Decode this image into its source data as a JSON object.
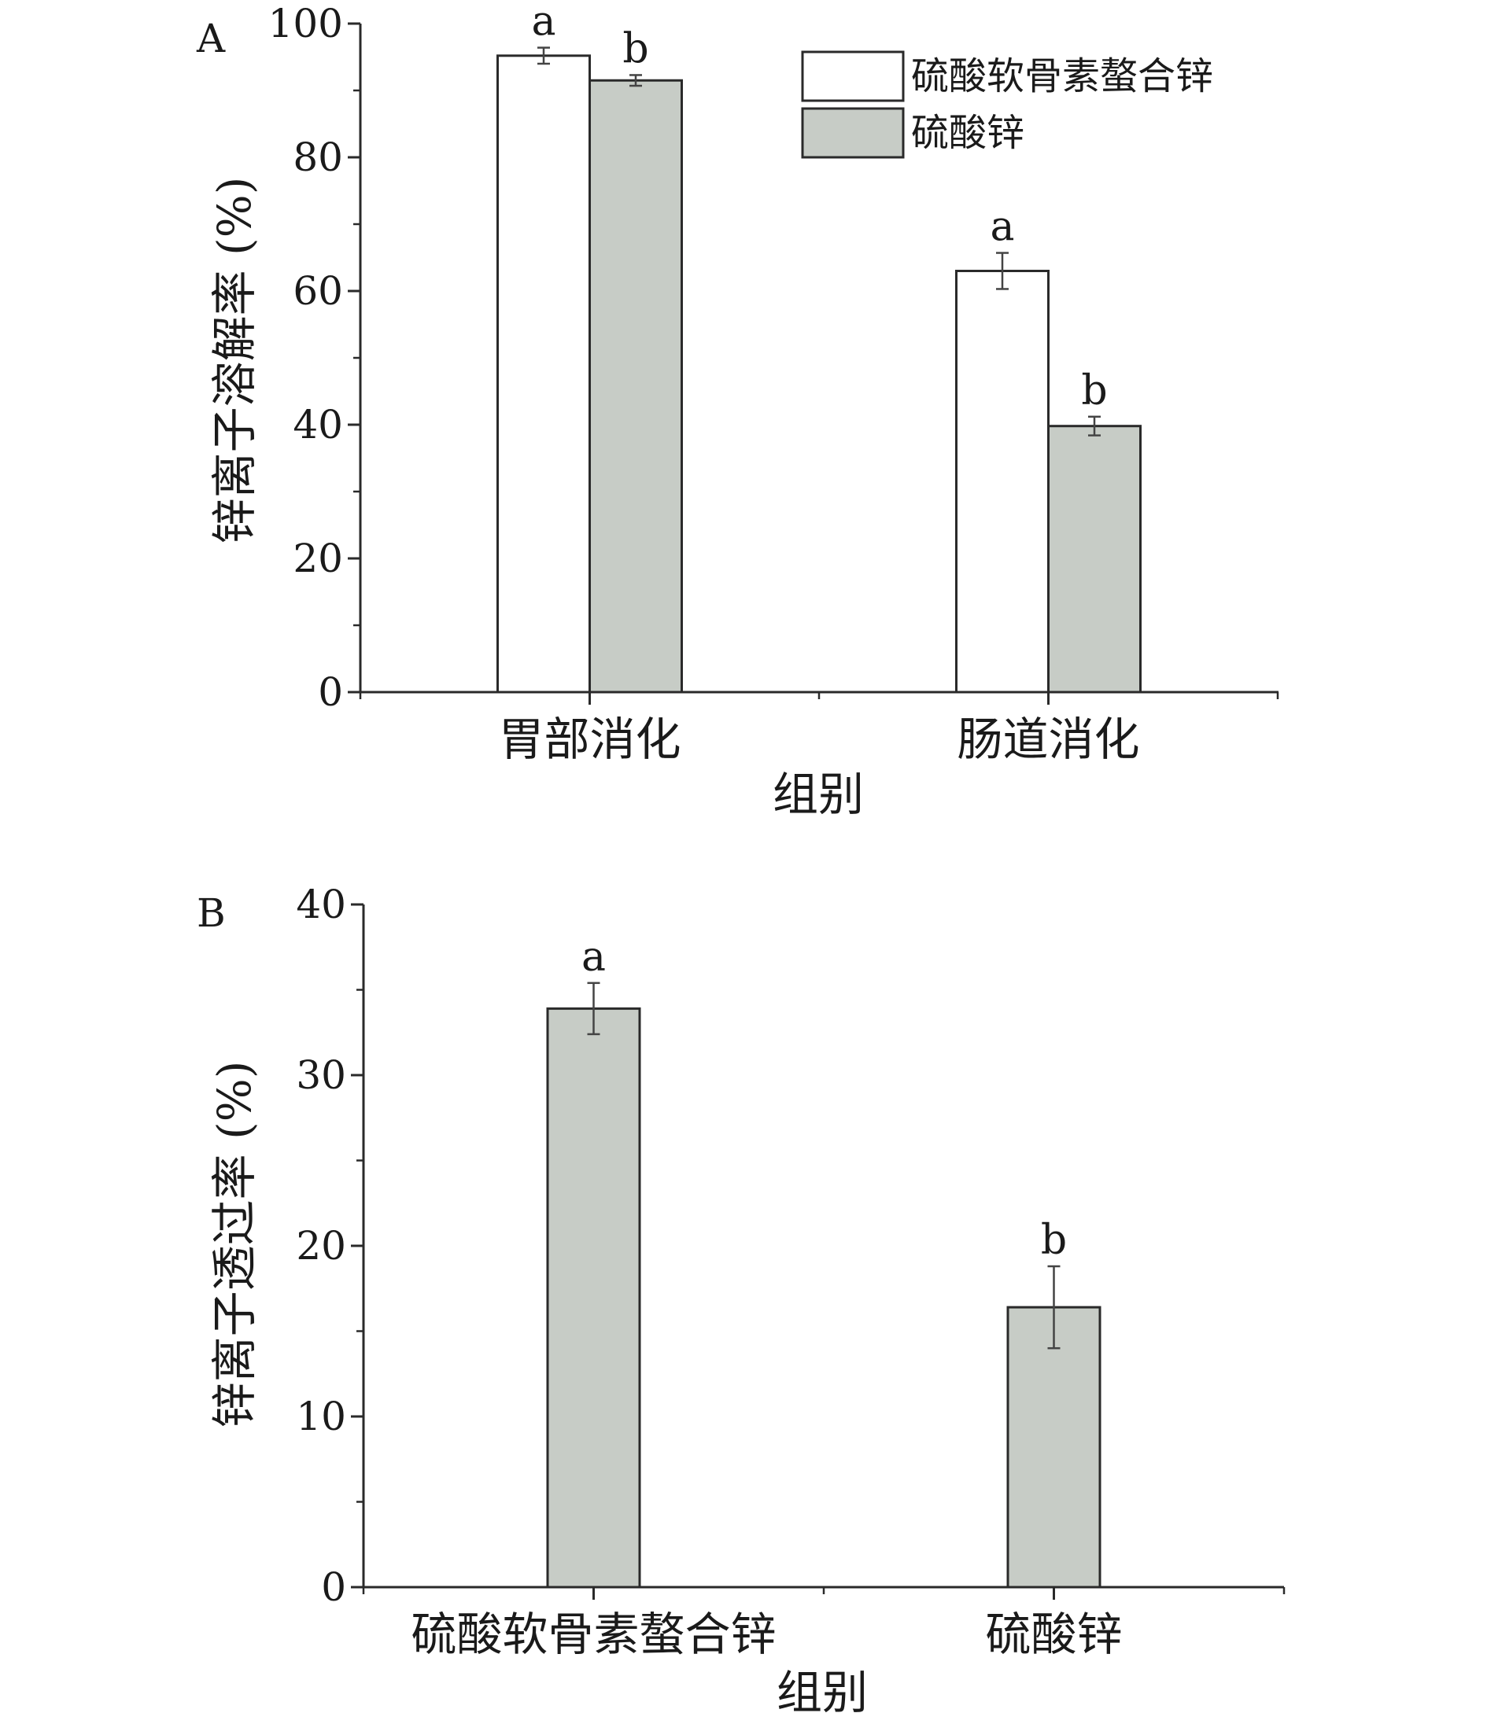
{
  "chart_data": [
    {
      "type": "bar",
      "panel": "A",
      "categories": [
        "胃部消化",
        "肠道消化"
      ],
      "series": [
        {
          "name": "硫酸软骨素螯合锌",
          "color": "#ffffff",
          "values": [
            95.2,
            63.0
          ],
          "errors": [
            1.2,
            2.7
          ],
          "labels": [
            "a",
            "a"
          ]
        },
        {
          "name": "硫酸锌",
          "color": "#c7ccc6",
          "values": [
            91.5,
            39.8
          ],
          "errors": [
            0.8,
            1.4
          ],
          "labels": [
            "b",
            "b"
          ]
        }
      ],
      "xlabel": "组别",
      "ylabel": "锌离子溶解率 (%)",
      "ylim": [
        0,
        100
      ],
      "yticks": [
        0,
        20,
        40,
        60,
        80,
        100
      ],
      "legend_position": "top-right"
    },
    {
      "type": "bar",
      "panel": "B",
      "categories": [
        "硫酸软骨素螯合锌",
        "硫酸锌"
      ],
      "series": [
        {
          "color": "#c7ccc6",
          "values": [
            33.9,
            16.4
          ],
          "errors": [
            1.5,
            2.4
          ],
          "labels": [
            "a",
            "b"
          ]
        }
      ],
      "xlabel": "组别",
      "ylabel": "锌离子透过率 (%)",
      "ylim": [
        0,
        40
      ],
      "yticks": [
        0,
        10,
        20,
        30,
        40
      ]
    }
  ]
}
